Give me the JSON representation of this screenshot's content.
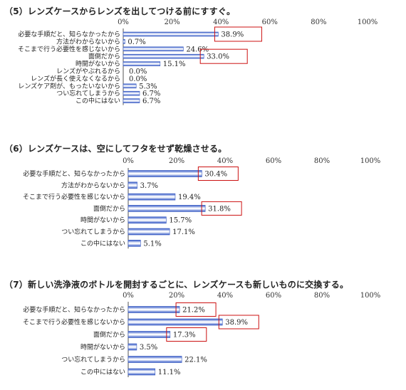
{
  "chart_data": [
    {
      "type": "bar",
      "orientation": "horizontal",
      "title": "（5）レンズケースからレンズを出してつける前にすすぐ。",
      "xlim": [
        0,
        100
      ],
      "ticks": [
        "0%",
        "20%",
        "40%",
        "60%",
        "80%",
        "100%"
      ],
      "categories": [
        "必要な手順だと、知らなかったから",
        "方法がわからないから",
        "そこまで行う必要性を感じないから",
        "面倒だから",
        "時間がないから",
        "レンズがやぶれるから",
        "レンズが長く使えなくなるから",
        "レンズケア剤が、もったいないから",
        "つい忘れてしまうから",
        "この中にはない"
      ],
      "values": [
        38.9,
        0.7,
        24.6,
        33.0,
        15.1,
        0.0,
        0.0,
        5.3,
        6.7,
        6.7
      ],
      "labels": [
        "38.9%",
        "0.7%",
        "24.6%",
        "33.0%",
        "15.1%",
        "0.0%",
        "0.0%",
        "5.3%",
        "6.7%",
        "6.7%"
      ],
      "highlighted": [
        0,
        3
      ]
    },
    {
      "type": "bar",
      "orientation": "horizontal",
      "title": "（6）レンズケースは、空にしてフタをせず乾燥させる。",
      "xlim": [
        0,
        100
      ],
      "ticks": [
        "0%",
        "20%",
        "40%",
        "60%",
        "80%",
        "100%"
      ],
      "categories": [
        "必要な手順だと、知らなかったから",
        "方法がわからないから",
        "そこまで行う必要性を感じないから",
        "面倒だから",
        "時間がないから",
        "つい忘れてしまうから",
        "この中にはない"
      ],
      "values": [
        30.4,
        3.7,
        19.4,
        31.8,
        15.7,
        17.1,
        5.1
      ],
      "labels": [
        "30.4%",
        "3.7%",
        "19.4%",
        "31.8%",
        "15.7%",
        "17.1%",
        "5.1%"
      ],
      "highlighted": [
        0,
        3
      ]
    },
    {
      "type": "bar",
      "orientation": "horizontal",
      "title": "（7）新しい洗浄液のボトルを開封するごとに、レンズケースも新しいものに交換する。",
      "xlim": [
        0,
        100
      ],
      "ticks": [
        "0%",
        "20%",
        "40%",
        "60%",
        "80%",
        "100%"
      ],
      "categories": [
        "必要な手順だと、知らなかったから",
        "そこまで行う必要性を感じないから",
        "面倒だから",
        "時間がないから",
        "つい忘れてしまうから",
        "この中にはない"
      ],
      "values": [
        21.2,
        38.9,
        17.3,
        3.5,
        22.1,
        11.1
      ],
      "labels": [
        "21.2%",
        "38.9%",
        "17.3%",
        "3.5%",
        "22.1%",
        "11.1%"
      ],
      "highlighted": [
        0,
        1,
        2
      ]
    }
  ],
  "colors": {
    "bar_light": "#ffffff",
    "bar_dark": "#2f55c6",
    "bar_border": "#3a5cc0",
    "highlight_box": "#cc1111",
    "axis": "#555555"
  }
}
